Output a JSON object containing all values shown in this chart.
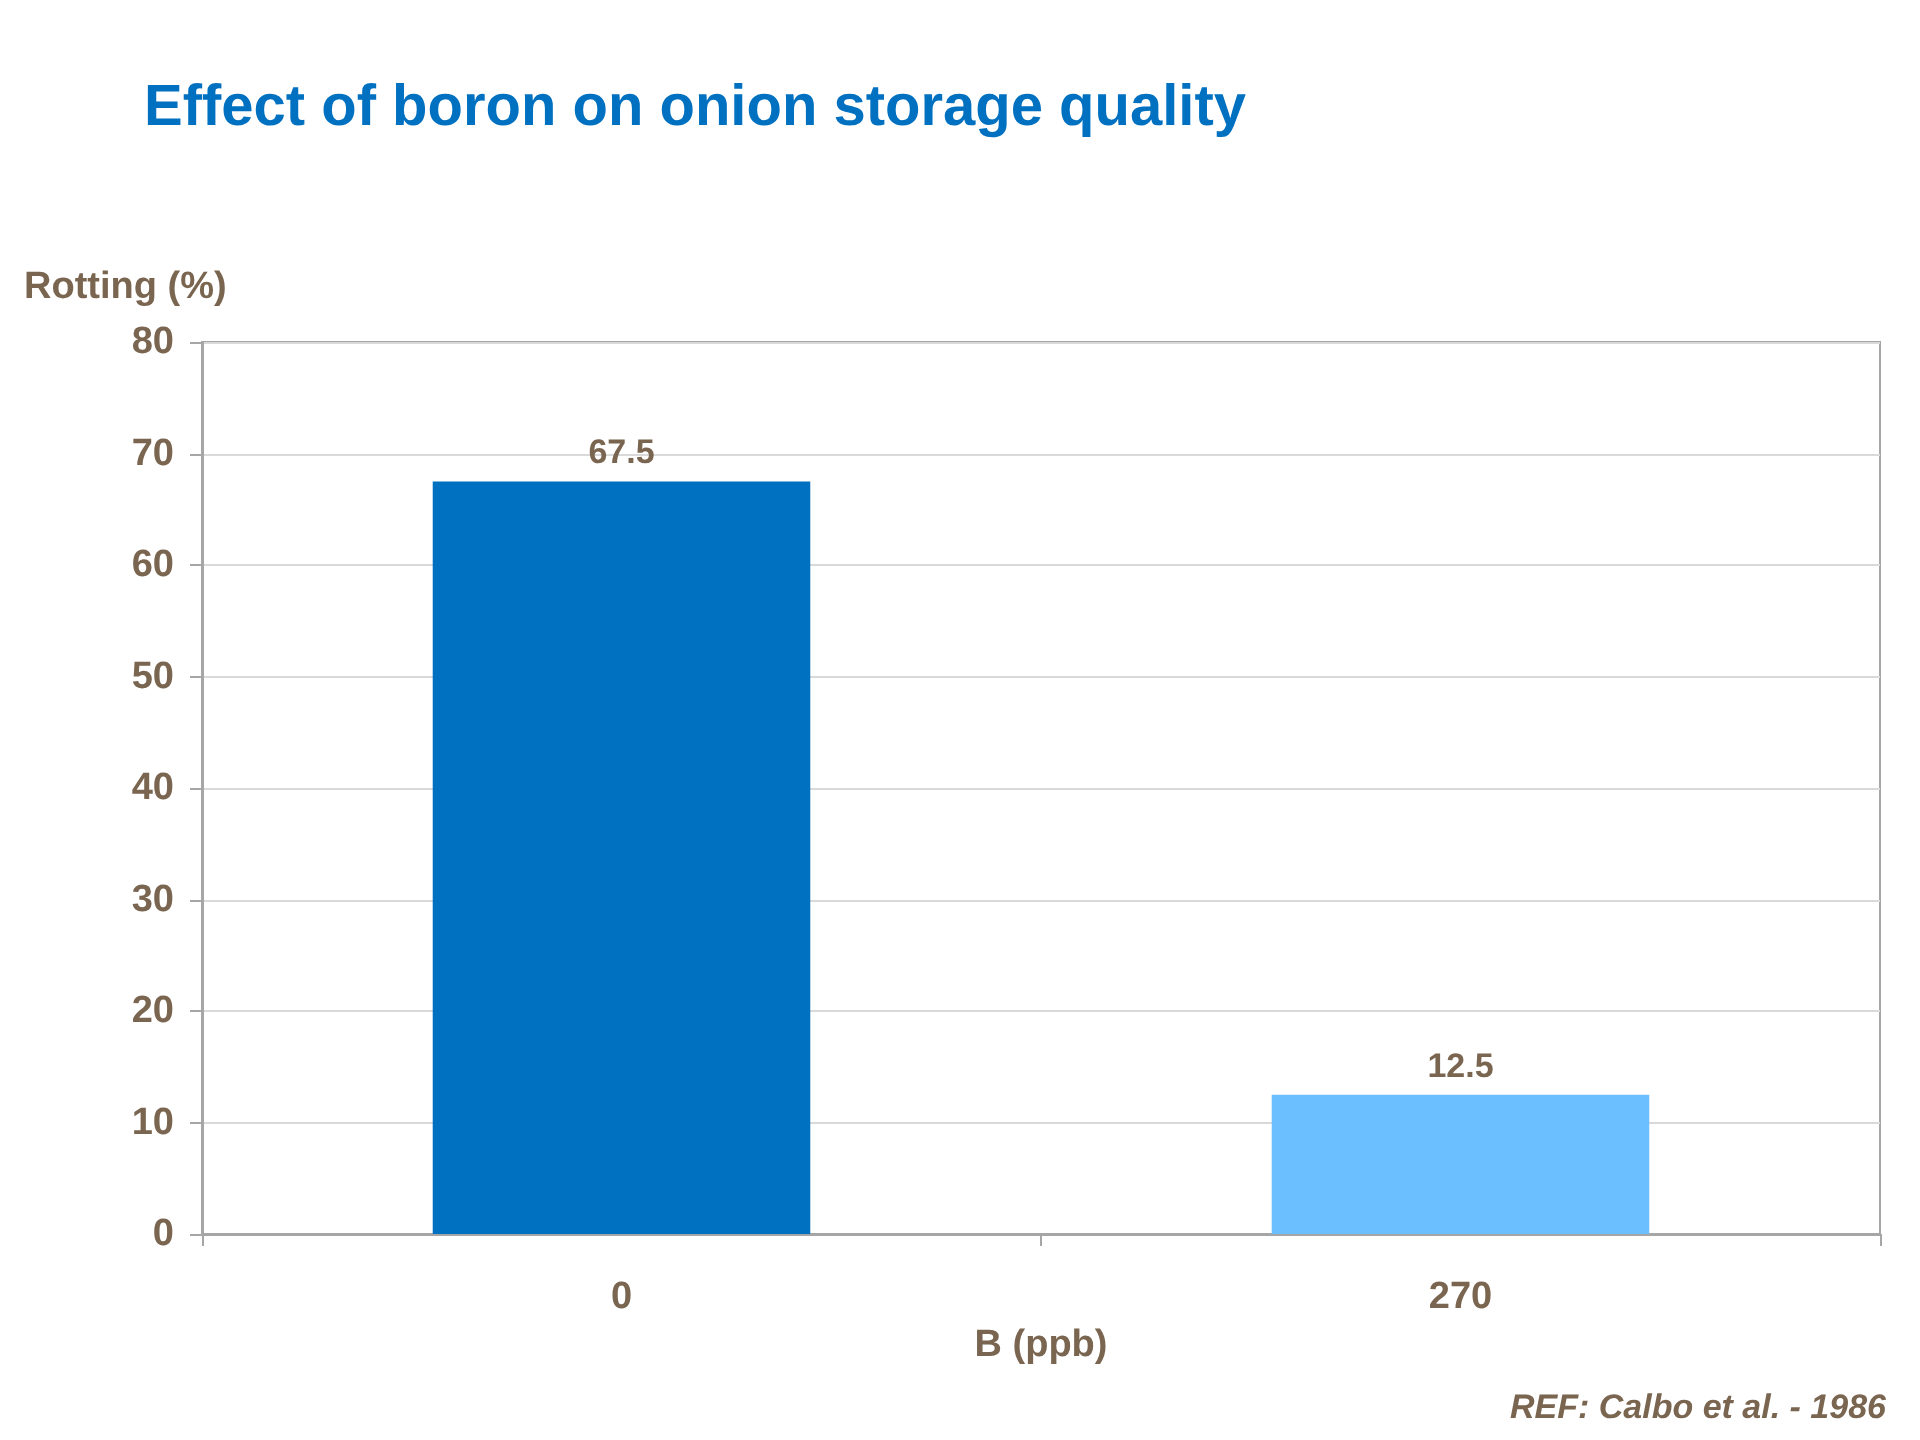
{
  "chart_data": {
    "type": "bar",
    "title": "Effect of boron on onion storage quality",
    "xlabel": "B (ppb)",
    "ylabel": "Rotting (%)",
    "categories": [
      "0",
      "270"
    ],
    "values": [
      67.5,
      12.5
    ],
    "colors": [
      "#0070c0",
      "#6bbfff"
    ],
    "ylim": [
      0,
      80
    ],
    "yticks": [
      0,
      10,
      20,
      30,
      40,
      50,
      60,
      70,
      80
    ],
    "grid": "y",
    "data_labels": true,
    "annotations": [
      "REF: Calbo et al. - 1986"
    ]
  }
}
